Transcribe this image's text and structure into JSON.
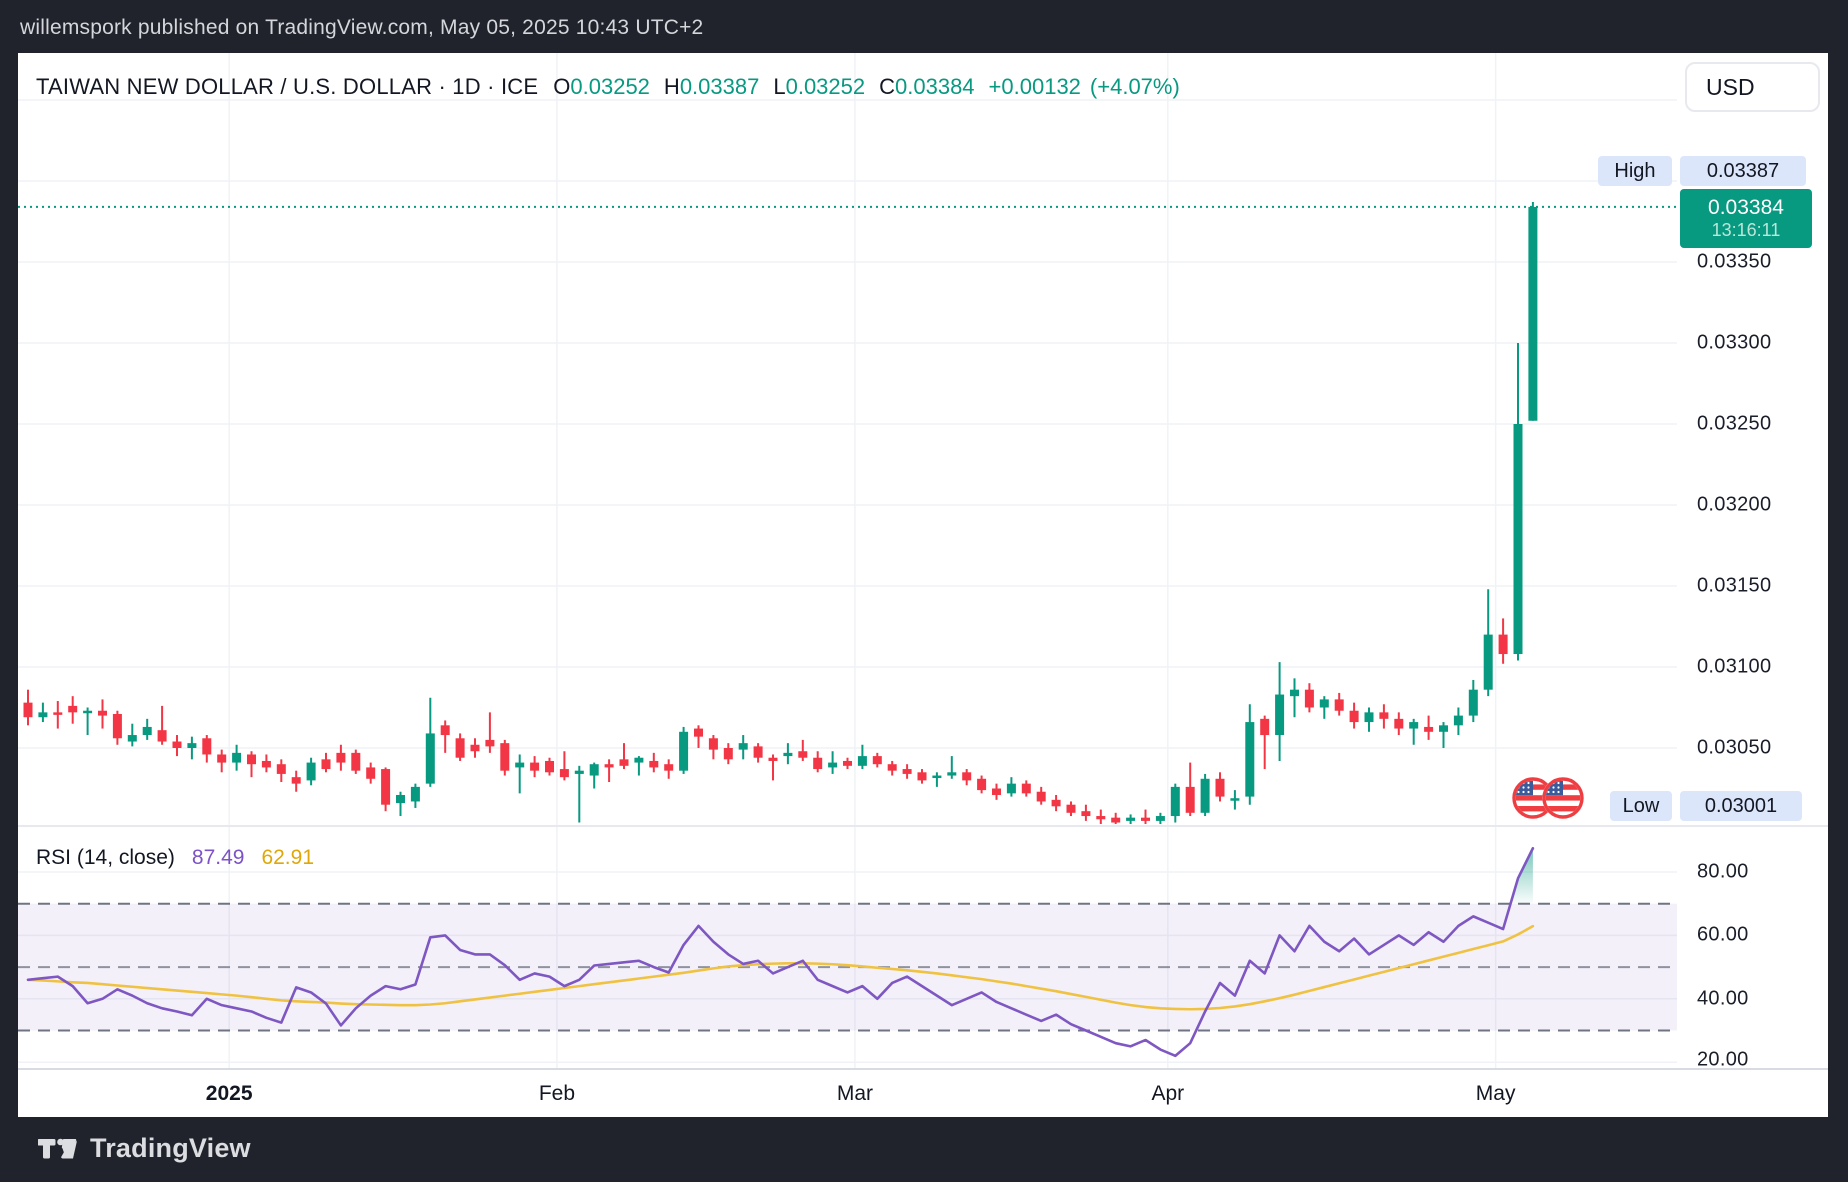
{
  "top_bar": {
    "attribution": "willemspork published on TradingView.com, May 05, 2025 10:43 UTC+2"
  },
  "header": {
    "symbol_title": "TAIWAN NEW DOLLAR / U.S. DOLLAR · 1D · ICE",
    "ohlc": {
      "open_label": "O",
      "open": "0.03252",
      "high_label": "H",
      "high": "0.03387",
      "low_label": "L",
      "low": "0.03252",
      "close_label": "C",
      "close": "0.03384",
      "change": "+0.00132",
      "change_pct": "(+4.07%)"
    }
  },
  "currency_button": {
    "label": "USD"
  },
  "price_axis": {
    "high_tag": {
      "label": "High",
      "value": "0.03387"
    },
    "low_tag": {
      "label": "Low",
      "value": "0.03001"
    },
    "current_badge": {
      "price": "0.03384",
      "countdown": "13:16:11"
    }
  },
  "rsi_panel": {
    "title": "RSI (14, close)",
    "value_rsi": "87.49",
    "value_ma": "62.91"
  },
  "footer": {
    "brand": "TradingView"
  },
  "colors": {
    "up": "#089981",
    "down": "#f23645",
    "accent_teal": "#089981",
    "rsi_line": "#7e57c2",
    "rsi_ma_line": "#f0c242",
    "chip_bg": "#dce6fb",
    "badge_bg": "#089981",
    "grid": "#f0f2f7",
    "frame_dark": "#20232b",
    "text_dark": "#131722"
  },
  "chart_data": {
    "type": "candlestick",
    "title": "TAIWAN NEW DOLLAR / U.S. DOLLAR",
    "interval": "1D",
    "exchange": "ICE",
    "legend": [
      "price candles",
      "RSI (14, close)",
      "RSI moving average"
    ],
    "value_scale": 100000,
    "candles_ohlc_scaled": [
      [
        3078,
        3086,
        3064,
        3069
      ],
      [
        3069,
        3078,
        3066,
        3072
      ],
      [
        3072,
        3079,
        3062,
        3071
      ],
      [
        3076,
        3082,
        3065,
        3072
      ],
      [
        3072,
        3075,
        3058,
        3073
      ],
      [
        3073,
        3080,
        3062,
        3070
      ],
      [
        3071,
        3073,
        3052,
        3056
      ],
      [
        3054,
        3065,
        3051,
        3058
      ],
      [
        3058,
        3068,
        3055,
        3063
      ],
      [
        3061,
        3076,
        3052,
        3054
      ],
      [
        3054,
        3058,
        3045,
        3050
      ],
      [
        3050,
        3057,
        3043,
        3053
      ],
      [
        3056,
        3058,
        3041,
        3046
      ],
      [
        3046,
        3049,
        3035,
        3041
      ],
      [
        3041,
        3052,
        3036,
        3047
      ],
      [
        3046,
        3048,
        3032,
        3040
      ],
      [
        3042,
        3046,
        3035,
        3038
      ],
      [
        3040,
        3043,
        3029,
        3034
      ],
      [
        3032,
        3036,
        3023,
        3028
      ],
      [
        3030,
        3044,
        3027,
        3041
      ],
      [
        3043,
        3047,
        3035,
        3037
      ],
      [
        3047,
        3052,
        3036,
        3041
      ],
      [
        3047,
        3049,
        3034,
        3036
      ],
      [
        3038,
        3041,
        3028,
        3031
      ],
      [
        3037,
        3038,
        3011,
        3015
      ],
      [
        3016,
        3023,
        3008,
        3021
      ],
      [
        3017,
        3028,
        3013,
        3026
      ],
      [
        3028,
        3081,
        3026,
        3059
      ],
      [
        3064,
        3067,
        3047,
        3058
      ],
      [
        3056,
        3059,
        3042,
        3044
      ],
      [
        3052,
        3056,
        3044,
        3048
      ],
      [
        3055,
        3072,
        3047,
        3051
      ],
      [
        3053,
        3055,
        3033,
        3036
      ],
      [
        3038,
        3046,
        3022,
        3041
      ],
      [
        3041,
        3045,
        3032,
        3036
      ],
      [
        3042,
        3044,
        3033,
        3035
      ],
      [
        3037,
        3048,
        3030,
        3032
      ],
      [
        3034,
        3039,
        3004,
        3036
      ],
      [
        3033,
        3041,
        3025,
        3040
      ],
      [
        3040,
        3043,
        3029,
        3038
      ],
      [
        3043,
        3053,
        3037,
        3039
      ],
      [
        3041,
        3045,
        3033,
        3044
      ],
      [
        3042,
        3047,
        3035,
        3038
      ],
      [
        3040,
        3043,
        3031,
        3036
      ],
      [
        3036,
        3063,
        3034,
        3060
      ],
      [
        3062,
        3064,
        3050,
        3057
      ],
      [
        3056,
        3058,
        3043,
        3049
      ],
      [
        3050,
        3053,
        3040,
        3043
      ],
      [
        3049,
        3058,
        3043,
        3053
      ],
      [
        3051,
        3053,
        3041,
        3044
      ],
      [
        3044,
        3046,
        3030,
        3042
      ],
      [
        3045,
        3053,
        3040,
        3047
      ],
      [
        3048,
        3055,
        3042,
        3044
      ],
      [
        3044,
        3048,
        3035,
        3037
      ],
      [
        3038,
        3048,
        3034,
        3041
      ],
      [
        3042,
        3044,
        3037,
        3039
      ],
      [
        3039,
        3052,
        3037,
        3045
      ],
      [
        3045,
        3047,
        3038,
        3040
      ],
      [
        3040,
        3042,
        3033,
        3036
      ],
      [
        3037,
        3040,
        3031,
        3034
      ],
      [
        3035,
        3037,
        3028,
        3030
      ],
      [
        3032,
        3035,
        3026,
        3033
      ],
      [
        3033,
        3045,
        3031,
        3035
      ],
      [
        3035,
        3037,
        3027,
        3030
      ],
      [
        3031,
        3033,
        3022,
        3024
      ],
      [
        3025,
        3028,
        3018,
        3021
      ],
      [
        3022,
        3032,
        3020,
        3028
      ],
      [
        3028,
        3030,
        3020,
        3022
      ],
      [
        3023,
        3026,
        3015,
        3017
      ],
      [
        3018,
        3021,
        3011,
        3014
      ],
      [
        3015,
        3017,
        3008,
        3010
      ],
      [
        3011,
        3015,
        3005,
        3008
      ],
      [
        3008,
        3012,
        3002,
        3006
      ],
      [
        3007,
        3010,
        3002,
        3004
      ],
      [
        3005,
        3009,
        3001,
        3007
      ],
      [
        3007,
        3012,
        3001,
        3005
      ],
      [
        3005,
        3010,
        3001,
        3008
      ],
      [
        3008,
        3028,
        3004,
        3026
      ],
      [
        3026,
        3041,
        3008,
        3010
      ],
      [
        3010,
        3034,
        3008,
        3031
      ],
      [
        3031,
        3035,
        3017,
        3020
      ],
      [
        3018,
        3024,
        3012,
        3019
      ],
      [
        3020,
        3077,
        3015,
        3066
      ],
      [
        3068,
        3070,
        3037,
        3058
      ],
      [
        3058,
        3103,
        3042,
        3083
      ],
      [
        3082,
        3093,
        3069,
        3086
      ],
      [
        3086,
        3090,
        3072,
        3075
      ],
      [
        3075,
        3082,
        3068,
        3080
      ],
      [
        3080,
        3084,
        3070,
        3073
      ],
      [
        3073,
        3078,
        3062,
        3066
      ],
      [
        3066,
        3075,
        3060,
        3072
      ],
      [
        3072,
        3077,
        3062,
        3068
      ],
      [
        3068,
        3072,
        3058,
        3062
      ],
      [
        3062,
        3068,
        3052,
        3066
      ],
      [
        3063,
        3070,
        3055,
        3060
      ],
      [
        3060,
        3066,
        3050,
        3064
      ],
      [
        3064,
        3075,
        3058,
        3070
      ],
      [
        3070,
        3092,
        3066,
        3086
      ],
      [
        3086,
        3148,
        3082,
        3120
      ],
      [
        3120,
        3130,
        3102,
        3108
      ],
      [
        3108,
        3300,
        3104,
        3250
      ],
      [
        3252,
        3387,
        3252,
        3384
      ]
    ],
    "rsi_series": [
      46,
      46.5,
      47,
      44,
      38.6,
      40,
      43,
      41,
      38.6,
      37,
      36,
      34.8,
      40,
      38,
      37,
      36,
      34,
      32.5,
      43.6,
      42,
      38.5,
      31.6,
      37,
      41,
      44,
      43,
      44.5,
      59.4,
      60,
      55.4,
      54,
      54,
      50.6,
      46,
      48,
      47,
      44,
      46,
      50.5,
      51,
      51.5,
      52,
      50,
      48.3,
      57,
      63,
      58,
      54,
      51,
      52,
      48,
      50,
      52,
      46,
      44,
      42,
      44,
      40,
      45,
      47,
      44,
      41,
      38,
      40,
      42,
      39,
      37,
      35,
      33,
      35,
      32,
      30,
      28,
      26,
      25,
      27,
      24,
      22,
      26,
      36,
      45,
      41,
      52,
      48,
      60,
      55,
      63,
      58,
      55,
      59,
      54,
      57,
      60,
      57,
      61,
      58,
      63,
      66,
      64,
      62,
      78,
      87.49
    ],
    "rsi_ma_series": [
      46,
      45.8,
      45.5,
      45.2,
      45,
      44.6,
      44.2,
      43.8,
      43.4,
      43,
      42.6,
      42.2,
      41.8,
      41.4,
      41,
      40.5,
      40,
      39.5,
      39.2,
      39,
      38.8,
      38.5,
      38.3,
      38.2,
      38.1,
      38,
      38,
      38.2,
      38.6,
      39.2,
      39.8,
      40.4,
      41,
      41.6,
      42.2,
      42.8,
      43.4,
      44,
      44.6,
      45.2,
      45.8,
      46.4,
      47,
      47.6,
      48.2,
      48.9,
      49.6,
      50.2,
      50.6,
      50.9,
      51.1,
      51.2,
      51.2,
      51.1,
      50.9,
      50.6,
      50.2,
      49.8,
      49.4,
      49,
      48.5,
      48,
      47.4,
      46.8,
      46.2,
      45.5,
      44.8,
      44,
      43.2,
      42.4,
      41.5,
      40.6,
      39.7,
      38.8,
      38,
      37.4,
      37,
      36.8,
      36.7,
      36.8,
      37.1,
      37.6,
      38.3,
      39.2,
      40.2,
      41.3,
      42.5,
      43.7,
      44.9,
      46.1,
      47.3,
      48.5,
      49.7,
      50.9,
      52.1,
      53.3,
      54.5,
      55.7,
      56.9,
      58.1,
      60.3,
      62.91
    ],
    "current_price": 0.03384,
    "high_value": 0.03387,
    "low_value": 0.03001,
    "price_gridlines": [
      0.0345,
      0.034,
      0.0335,
      0.033,
      0.0325,
      0.032,
      0.0315,
      0.031,
      0.0305
    ],
    "price_axis_ticks": [
      0.0335,
      0.033,
      0.0325,
      0.032,
      0.0315,
      0.031,
      0.0305
    ],
    "rsi_axis_ticks": [
      80,
      60,
      40,
      20
    ],
    "rsi_levels": {
      "overbought": 70,
      "middle": 50,
      "oversold": 30
    },
    "time_ticks": [
      {
        "index": 14,
        "label": "2025",
        "bold": true
      },
      {
        "index": 36,
        "label": "Feb"
      },
      {
        "index": 56,
        "label": "Mar"
      },
      {
        "index": 77,
        "label": "Apr"
      },
      {
        "index": 99,
        "label": "May"
      }
    ]
  }
}
